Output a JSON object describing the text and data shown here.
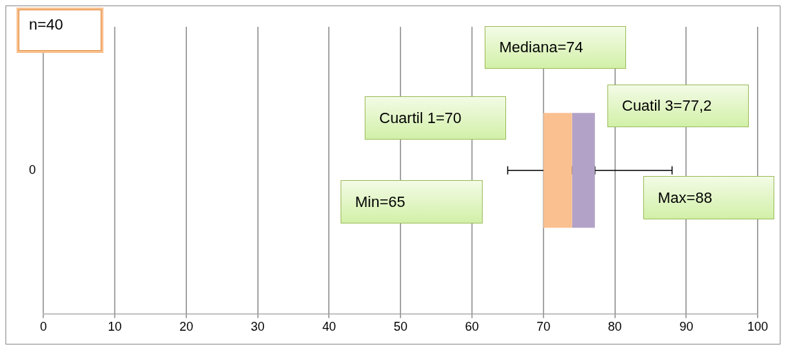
{
  "chart_data": {
    "type": "bar",
    "orientation": "horizontal",
    "categories": [
      "0"
    ],
    "series": [
      {
        "color": "#fac090",
        "base": [
          70
        ],
        "values": [
          4
        ],
        "errors": [
          [
            65,
            74
          ]
        ]
      },
      {
        "color": "#b3a2c7",
        "base": [
          74
        ],
        "values": [
          3.2
        ],
        "errors": [
          [
            77.2,
            88
          ]
        ]
      }
    ],
    "xlim": [
      0,
      100
    ],
    "xticks": [
      0,
      10,
      20,
      30,
      40,
      50,
      60,
      70,
      80,
      90,
      100
    ],
    "grid": "x",
    "annotations": [
      "n=40",
      "Mediana=74",
      "Cuartil 1=70",
      "Cuatil 3=77,2",
      "Min=65",
      "Max=88"
    ]
  }
}
